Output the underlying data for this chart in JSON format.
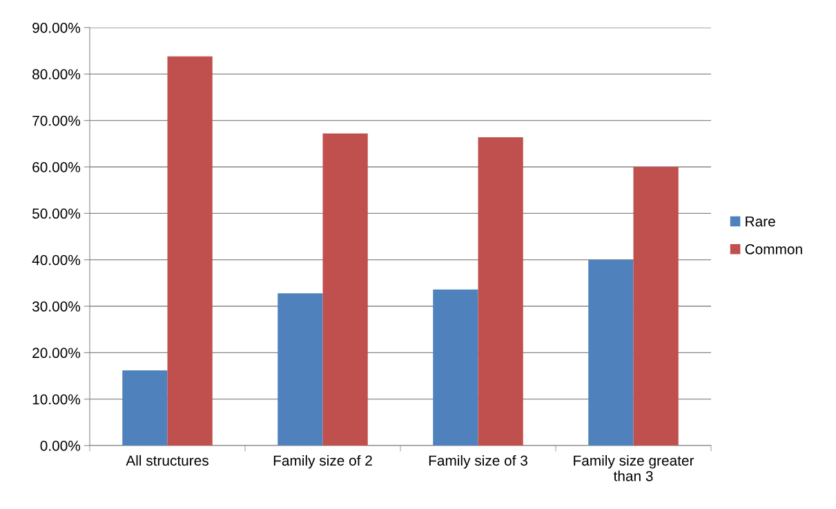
{
  "chart_data": {
    "type": "bar",
    "categories": [
      "All structures",
      "Family size of 2",
      "Family size of 3",
      "Family size greater than 3"
    ],
    "series": [
      {
        "name": "Rare",
        "color": "#4f81bd",
        "values": [
          16.2,
          32.8,
          33.6,
          40.0
        ]
      },
      {
        "name": "Common",
        "color": "#c0504d",
        "values": [
          83.8,
          67.2,
          66.4,
          60.0
        ]
      }
    ],
    "ylim": [
      0,
      90
    ],
    "yticks": [
      {
        "value": 0,
        "label": "0.00%"
      },
      {
        "value": 10,
        "label": "10.00%"
      },
      {
        "value": 20,
        "label": "20.00%"
      },
      {
        "value": 30,
        "label": "30.00%"
      },
      {
        "value": 40,
        "label": "40.00%"
      },
      {
        "value": 50,
        "label": "50.00%"
      },
      {
        "value": 60,
        "label": "60.00%"
      },
      {
        "value": 70,
        "label": "70.00%"
      },
      {
        "value": 80,
        "label": "80.00%"
      },
      {
        "value": 90,
        "label": "90.00%"
      }
    ],
    "grid": "y",
    "legend": "right"
  }
}
